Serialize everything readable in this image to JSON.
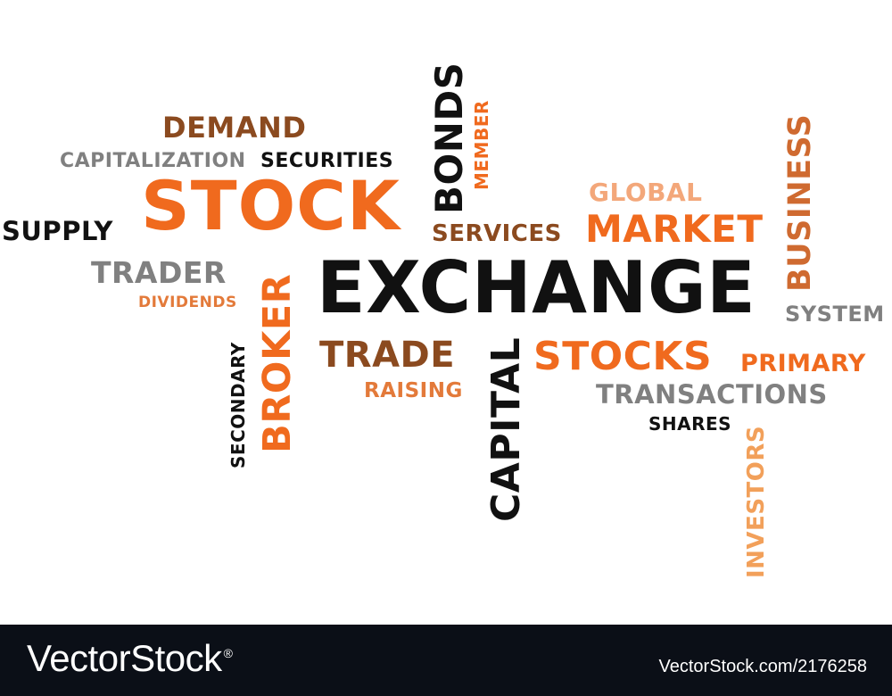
{
  "words": {
    "demand": "DEMAND",
    "capitalization": "CAPITALIZATION",
    "securities": "SECURITIES",
    "stock": "STOCK",
    "supply": "SUPPLY",
    "trader": "TRADER",
    "dividends": "DIVIDENDS",
    "broker": "BROKER",
    "secondary": "SECONDARY",
    "bonds": "BONDS",
    "member": "MEMBER",
    "services": "SERVICES",
    "global": "GLOBAL",
    "market": "MARKET",
    "business": "BUSINESS",
    "system": "SYSTEM",
    "exchange": "EXCHANGE",
    "trade": "TRADE",
    "raising": "RAISING",
    "capital": "CAPITAL",
    "stocks": "STOCKS",
    "primary": "PRIMARY",
    "transactions": "TRANSACTIONS",
    "shares": "SHARES",
    "investors": "INVESTORS"
  },
  "footer": {
    "brand": "VectorStock",
    "registered": "®",
    "image_ref": "VectorStock.com/2176258"
  }
}
